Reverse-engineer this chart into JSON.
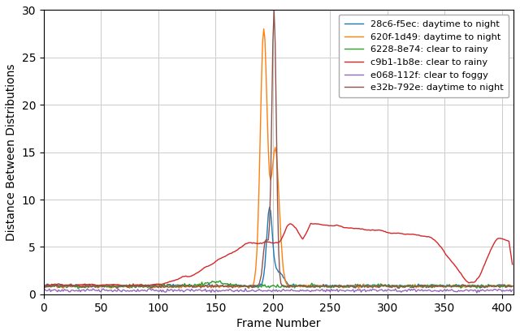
{
  "title": "",
  "xlabel": "Frame Number",
  "ylabel": "Distance Between Distributions",
  "xlim": [
    0,
    410
  ],
  "ylim": [
    0,
    30
  ],
  "yticks": [
    0,
    5,
    10,
    15,
    20,
    25,
    30
  ],
  "xticks": [
    0,
    50,
    100,
    150,
    200,
    250,
    300,
    350,
    400
  ],
  "series": [
    {
      "label": "28c6-f5ec: daytime to night",
      "color": "#1f77b4"
    },
    {
      "label": "620f-1d49: daytime to night",
      "color": "#ff7f0e"
    },
    {
      "label": "6228-8e74: clear to rainy",
      "color": "#2ca02c"
    },
    {
      "label": "c9b1-1b8e: clear to rainy",
      "color": "#d62728"
    },
    {
      "label": "e068-112f: clear to foggy",
      "color": "#9467bd"
    },
    {
      "label": "e32b-792e: daytime to night",
      "color": "#8c564b"
    }
  ],
  "grid_color": "#cccccc",
  "background_color": "#ffffff",
  "figsize": [
    6.4,
    4.13
  ],
  "dpi": 100
}
